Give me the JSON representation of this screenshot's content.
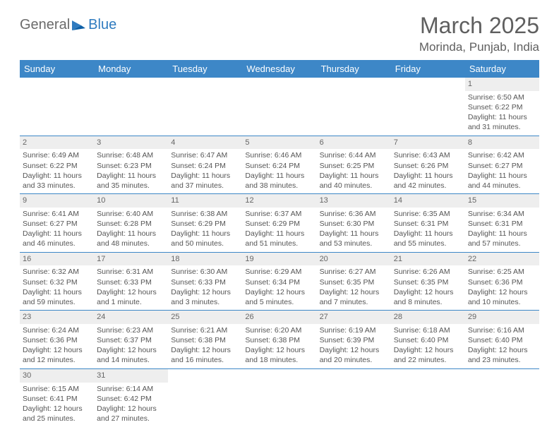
{
  "brand": {
    "part1": "General",
    "part2": "Blue"
  },
  "title": "March 2025",
  "location": "Morinda, Punjab, India",
  "colors": {
    "header_bg": "#3d87c7",
    "header_text": "#ffffff",
    "daynum_bg": "#eeeeee",
    "border": "#3d87c7",
    "text": "#555555"
  },
  "weekdays": [
    "Sunday",
    "Monday",
    "Tuesday",
    "Wednesday",
    "Thursday",
    "Friday",
    "Saturday"
  ],
  "weeks": [
    [
      null,
      null,
      null,
      null,
      null,
      null,
      {
        "n": "1",
        "sr": "6:50 AM",
        "ss": "6:22 PM",
        "dl": "11 hours and 31 minutes."
      }
    ],
    [
      {
        "n": "2",
        "sr": "6:49 AM",
        "ss": "6:22 PM",
        "dl": "11 hours and 33 minutes."
      },
      {
        "n": "3",
        "sr": "6:48 AM",
        "ss": "6:23 PM",
        "dl": "11 hours and 35 minutes."
      },
      {
        "n": "4",
        "sr": "6:47 AM",
        "ss": "6:24 PM",
        "dl": "11 hours and 37 minutes."
      },
      {
        "n": "5",
        "sr": "6:46 AM",
        "ss": "6:24 PM",
        "dl": "11 hours and 38 minutes."
      },
      {
        "n": "6",
        "sr": "6:44 AM",
        "ss": "6:25 PM",
        "dl": "11 hours and 40 minutes."
      },
      {
        "n": "7",
        "sr": "6:43 AM",
        "ss": "6:26 PM",
        "dl": "11 hours and 42 minutes."
      },
      {
        "n": "8",
        "sr": "6:42 AM",
        "ss": "6:27 PM",
        "dl": "11 hours and 44 minutes."
      }
    ],
    [
      {
        "n": "9",
        "sr": "6:41 AM",
        "ss": "6:27 PM",
        "dl": "11 hours and 46 minutes."
      },
      {
        "n": "10",
        "sr": "6:40 AM",
        "ss": "6:28 PM",
        "dl": "11 hours and 48 minutes."
      },
      {
        "n": "11",
        "sr": "6:38 AM",
        "ss": "6:29 PM",
        "dl": "11 hours and 50 minutes."
      },
      {
        "n": "12",
        "sr": "6:37 AM",
        "ss": "6:29 PM",
        "dl": "11 hours and 51 minutes."
      },
      {
        "n": "13",
        "sr": "6:36 AM",
        "ss": "6:30 PM",
        "dl": "11 hours and 53 minutes."
      },
      {
        "n": "14",
        "sr": "6:35 AM",
        "ss": "6:31 PM",
        "dl": "11 hours and 55 minutes."
      },
      {
        "n": "15",
        "sr": "6:34 AM",
        "ss": "6:31 PM",
        "dl": "11 hours and 57 minutes."
      }
    ],
    [
      {
        "n": "16",
        "sr": "6:32 AM",
        "ss": "6:32 PM",
        "dl": "11 hours and 59 minutes."
      },
      {
        "n": "17",
        "sr": "6:31 AM",
        "ss": "6:33 PM",
        "dl": "12 hours and 1 minute."
      },
      {
        "n": "18",
        "sr": "6:30 AM",
        "ss": "6:33 PM",
        "dl": "12 hours and 3 minutes."
      },
      {
        "n": "19",
        "sr": "6:29 AM",
        "ss": "6:34 PM",
        "dl": "12 hours and 5 minutes."
      },
      {
        "n": "20",
        "sr": "6:27 AM",
        "ss": "6:35 PM",
        "dl": "12 hours and 7 minutes."
      },
      {
        "n": "21",
        "sr": "6:26 AM",
        "ss": "6:35 PM",
        "dl": "12 hours and 8 minutes."
      },
      {
        "n": "22",
        "sr": "6:25 AM",
        "ss": "6:36 PM",
        "dl": "12 hours and 10 minutes."
      }
    ],
    [
      {
        "n": "23",
        "sr": "6:24 AM",
        "ss": "6:36 PM",
        "dl": "12 hours and 12 minutes."
      },
      {
        "n": "24",
        "sr": "6:23 AM",
        "ss": "6:37 PM",
        "dl": "12 hours and 14 minutes."
      },
      {
        "n": "25",
        "sr": "6:21 AM",
        "ss": "6:38 PM",
        "dl": "12 hours and 16 minutes."
      },
      {
        "n": "26",
        "sr": "6:20 AM",
        "ss": "6:38 PM",
        "dl": "12 hours and 18 minutes."
      },
      {
        "n": "27",
        "sr": "6:19 AM",
        "ss": "6:39 PM",
        "dl": "12 hours and 20 minutes."
      },
      {
        "n": "28",
        "sr": "6:18 AM",
        "ss": "6:40 PM",
        "dl": "12 hours and 22 minutes."
      },
      {
        "n": "29",
        "sr": "6:16 AM",
        "ss": "6:40 PM",
        "dl": "12 hours and 23 minutes."
      }
    ],
    [
      {
        "n": "30",
        "sr": "6:15 AM",
        "ss": "6:41 PM",
        "dl": "12 hours and 25 minutes."
      },
      {
        "n": "31",
        "sr": "6:14 AM",
        "ss": "6:42 PM",
        "dl": "12 hours and 27 minutes."
      },
      null,
      null,
      null,
      null,
      null
    ]
  ],
  "labels": {
    "sunrise": "Sunrise:",
    "sunset": "Sunset:",
    "daylight": "Daylight:"
  }
}
